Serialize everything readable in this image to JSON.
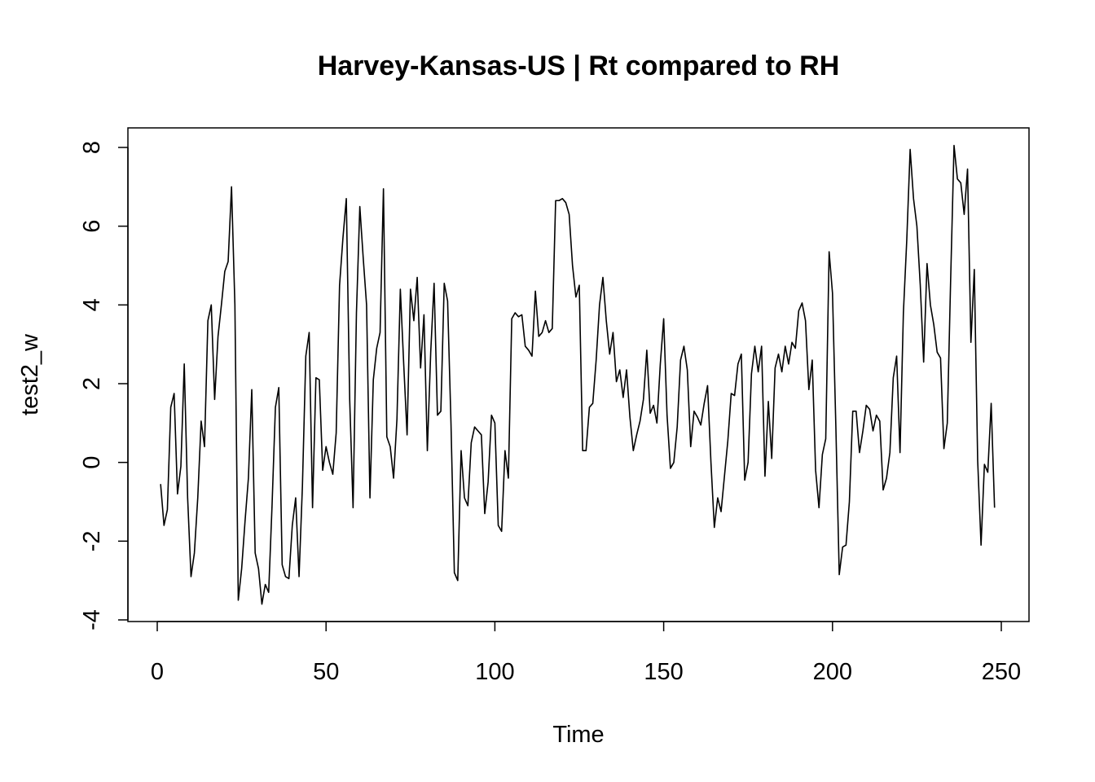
{
  "chart_data": {
    "type": "line",
    "title": "Harvey-Kansas-US | Rt compared to RH",
    "xlabel": "Time",
    "ylabel": "test2_w",
    "xlim": [
      -8.5,
      258.5
    ],
    "ylim": [
      -4.0,
      8.0
    ],
    "x_ticks": [
      0,
      50,
      100,
      150,
      200,
      250
    ],
    "y_ticks": [
      -4,
      -2,
      0,
      2,
      4,
      6,
      8
    ],
    "grid": false,
    "legend": "none",
    "line_color": "#000000",
    "series": [
      {
        "x_start": 1,
        "values": [
          -0.55,
          -1.6,
          -1.2,
          1.4,
          1.75,
          -0.8,
          -0.1,
          2.5,
          -0.9,
          -2.9,
          -2.3,
          -0.9,
          1.05,
          0.4,
          3.6,
          4.0,
          1.6,
          3.2,
          4.0,
          4.85,
          5.1,
          7.0,
          4.0,
          -3.5,
          -2.7,
          -1.5,
          -0.4,
          1.85,
          -2.3,
          -2.7,
          -3.6,
          -3.1,
          -3.3,
          -1.1,
          1.4,
          1.9,
          -2.6,
          -2.9,
          -2.95,
          -1.6,
          -0.9,
          -2.9,
          -0.6,
          2.7,
          3.3,
          -1.15,
          2.15,
          2.1,
          -0.2,
          0.4,
          0.0,
          -0.3,
          0.75,
          4.5,
          5.7,
          6.7,
          1.6,
          -1.15,
          3.8,
          6.5,
          5.2,
          4.0,
          -0.9,
          2.1,
          2.9,
          3.3,
          6.95,
          0.65,
          0.4,
          -0.4,
          1.1,
          4.4,
          2.5,
          0.7,
          4.4,
          3.6,
          4.7,
          2.4,
          3.75,
          0.3,
          2.8,
          4.55,
          1.2,
          1.3,
          4.55,
          4.1,
          1.0,
          -2.8,
          -3.0,
          0.3,
          -0.9,
          -1.1,
          0.5,
          0.9,
          0.8,
          0.7,
          -1.3,
          -0.5,
          1.2,
          1.0,
          -1.6,
          -1.75,
          0.3,
          -0.4,
          3.65,
          3.8,
          3.7,
          3.75,
          2.95,
          2.85,
          2.7,
          4.35,
          3.2,
          3.3,
          3.6,
          3.3,
          3.4,
          6.65,
          6.65,
          6.7,
          6.6,
          6.3,
          5.0,
          4.2,
          4.5,
          0.3,
          0.3,
          1.4,
          1.5,
          2.6,
          4.0,
          4.7,
          3.6,
          2.75,
          3.3,
          2.05,
          2.35,
          1.65,
          2.35,
          1.15,
          0.3,
          0.7,
          1.05,
          1.6,
          2.85,
          1.25,
          1.45,
          1.0,
          2.5,
          3.65,
          1.2,
          -0.15,
          0.0,
          0.9,
          2.6,
          2.95,
          2.35,
          0.4,
          1.3,
          1.15,
          0.95,
          1.5,
          1.95,
          0.0,
          -1.65,
          -0.9,
          -1.25,
          -0.35,
          0.55,
          1.75,
          1.7,
          2.5,
          2.75,
          -0.45,
          0.0,
          2.25,
          2.95,
          2.3,
          2.95,
          -0.35,
          1.55,
          0.1,
          2.4,
          2.75,
          2.3,
          2.95,
          2.5,
          3.05,
          2.9,
          3.85,
          4.05,
          3.6,
          1.85,
          2.6,
          -0.2,
          -1.15,
          0.2,
          0.6,
          5.35,
          4.3,
          0.9,
          -2.85,
          -2.15,
          -2.1,
          -1.0,
          1.3,
          1.3,
          0.25,
          0.8,
          1.45,
          1.35,
          0.8,
          1.2,
          1.05,
          -0.7,
          -0.4,
          0.25,
          2.15,
          2.7,
          0.25,
          3.8,
          5.65,
          7.95,
          6.7,
          6.0,
          4.5,
          2.55,
          5.05,
          4.0,
          3.5,
          2.8,
          2.65,
          0.35,
          1.0,
          4.65,
          8.05,
          7.2,
          7.1,
          6.3,
          7.45,
          3.05,
          4.9,
          0.05,
          -2.1,
          -0.05,
          -0.25,
          1.5,
          -1.15
        ]
      }
    ]
  }
}
